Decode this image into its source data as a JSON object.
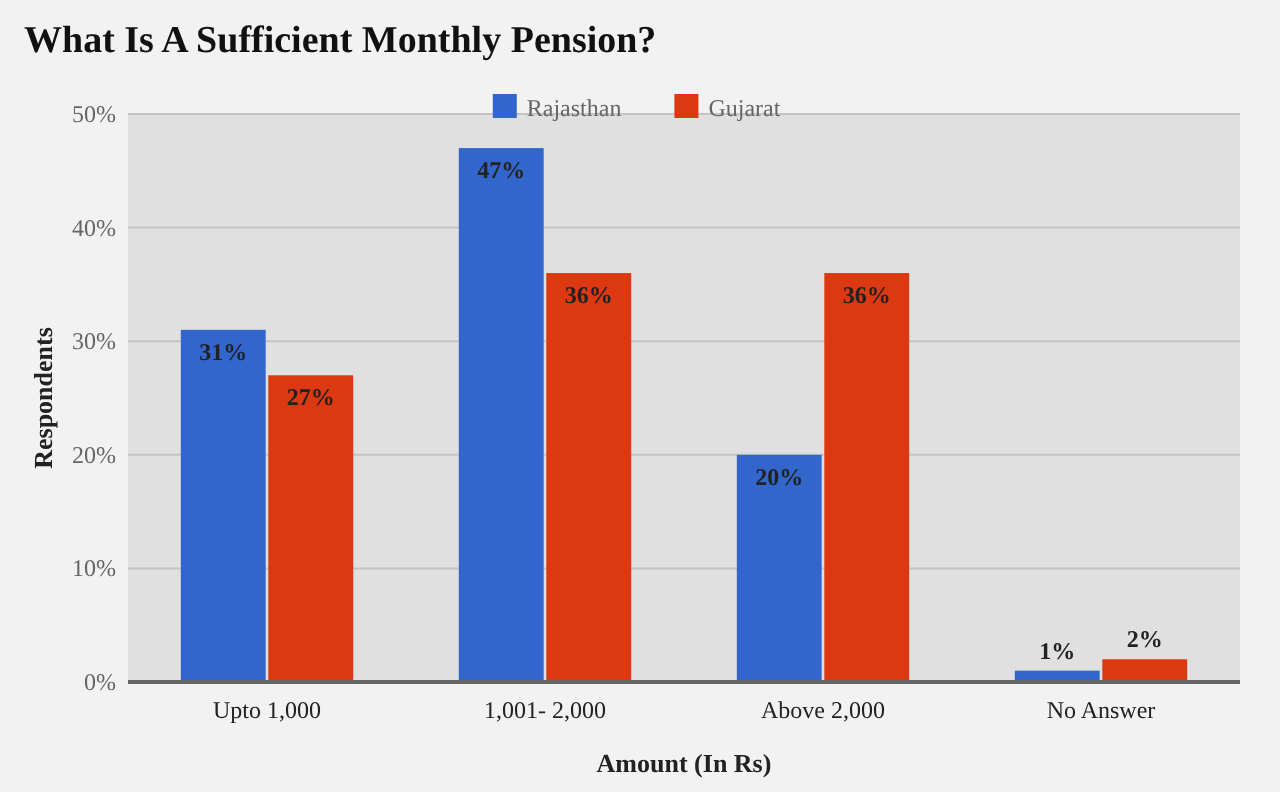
{
  "chart_data": {
    "type": "bar",
    "title": "What Is A Sufficient Monthly Pension?",
    "xlabel": "Amount (In Rs)",
    "ylabel": "Respondents",
    "categories": [
      "Upto 1,000",
      "1,001- 2,000",
      "Above 2,000",
      "No Answer"
    ],
    "series": [
      {
        "name": "Rajasthan",
        "color": "#3366cc",
        "values": [
          31,
          47,
          20,
          1
        ],
        "value_labels": [
          "31%",
          "47%",
          "20%",
          "1%"
        ]
      },
      {
        "name": "Gujarat",
        "color": "#dc3912",
        "values": [
          27,
          36,
          36,
          2
        ],
        "value_labels": [
          "27%",
          "36%",
          "36%",
          "2%"
        ]
      }
    ],
    "ylim": [
      0,
      50
    ],
    "yticks": [
      {
        "value": 0,
        "label": "0%"
      },
      {
        "value": 10,
        "label": "10%"
      },
      {
        "value": 20,
        "label": "20%"
      },
      {
        "value": 30,
        "label": "30%"
      },
      {
        "value": 40,
        "label": "40%"
      },
      {
        "value": 50,
        "label": "50%"
      }
    ],
    "grid": "y",
    "legend": "top"
  }
}
